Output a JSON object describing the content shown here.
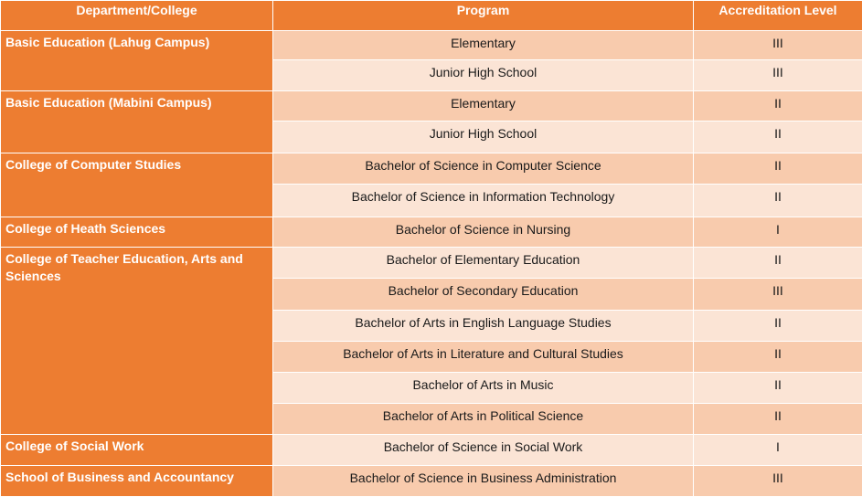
{
  "colors": {
    "header": "#ED7D31",
    "department": "#ED7D31",
    "row_dark": "#F8CBAD",
    "row_light": "#FBE4D5"
  },
  "headers": [
    "Department/College",
    "Program",
    "Accreditation Level"
  ],
  "departments": [
    {
      "name": "Basic Education (Lahug Campus)",
      "programs": [
        {
          "program": "Elementary",
          "level": "III"
        },
        {
          "program": "Junior High School",
          "level": "III"
        }
      ]
    },
    {
      "name": "Basic Education (Mabini Campus)",
      "programs": [
        {
          "program": "Elementary",
          "level": "II"
        },
        {
          "program": "Junior High School",
          "level": "II"
        }
      ]
    },
    {
      "name": "College of Computer Studies",
      "programs": [
        {
          "program": "Bachelor of Science in Computer Science",
          "level": "II"
        },
        {
          "program": "Bachelor of Science in Information Technology",
          "level": "II"
        }
      ]
    },
    {
      "name": "College of Heath Sciences",
      "programs": [
        {
          "program": "Bachelor of Science in Nursing",
          "level": "I"
        }
      ]
    },
    {
      "name": "College of Teacher Education, Arts and Sciences",
      "programs": [
        {
          "program": "Bachelor of Elementary Education",
          "level": "II"
        },
        {
          "program": "Bachelor of Secondary Education",
          "level": "III"
        },
        {
          "program": "Bachelor of Arts in English Language Studies",
          "level": "II"
        },
        {
          "program": "Bachelor of Arts in Literature and Cultural Studies",
          "level": "II"
        },
        {
          "program": "Bachelor of Arts in Music",
          "level": "II"
        },
        {
          "program": "Bachelor of Arts in Political Science",
          "level": "II"
        }
      ]
    },
    {
      "name": "College of Social Work",
      "programs": [
        {
          "program": "Bachelor of Science in Social Work",
          "level": "I"
        }
      ]
    },
    {
      "name": "School of Business and Accountancy",
      "programs": [
        {
          "program": "Bachelor of Science in Business Administration",
          "level": "III"
        }
      ]
    }
  ]
}
